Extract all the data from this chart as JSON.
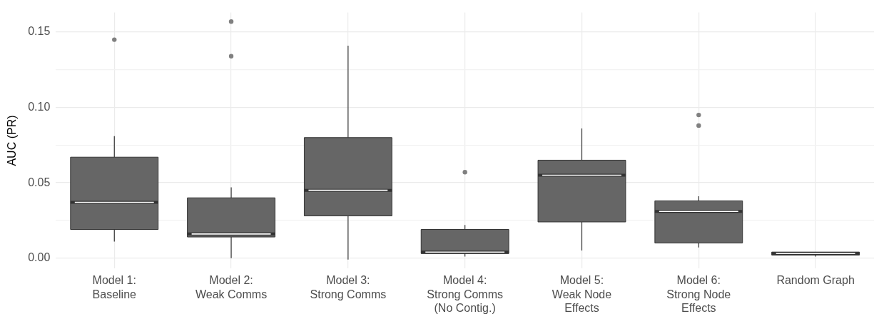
{
  "chart_data": {
    "type": "box",
    "ylabel": "AUC (PR)",
    "categories": [
      "Model 1:\nBaseline",
      "Model 2:\nWeak Comms",
      "Model 3:\nStrong Comms",
      "Model 4:\nStrong Comms\n(No Contig.)",
      "Model 5:\nWeak Node\nEffects",
      "Model 6:\nStrong Node\nEffects",
      "Random Graph"
    ],
    "color": "#666666",
    "boxes": [
      {
        "low": 0.011,
        "q1": 0.019,
        "median": 0.037,
        "q3": 0.067,
        "high": 0.081,
        "outliers": [
          0.145
        ]
      },
      {
        "low": 0.0,
        "q1": 0.014,
        "median": 0.016,
        "q3": 0.04,
        "high": 0.047,
        "outliers": [
          0.157,
          0.134
        ]
      },
      {
        "low": -0.001,
        "q1": 0.028,
        "median": 0.045,
        "q3": 0.08,
        "high": 0.141
      },
      {
        "low": 0.001,
        "q1": 0.003,
        "median": 0.004,
        "q3": 0.019,
        "high": 0.022,
        "outliers": [
          0.057
        ]
      },
      {
        "low": 0.005,
        "q1": 0.024,
        "median": 0.055,
        "q3": 0.065,
        "high": 0.086
      },
      {
        "low": 0.007,
        "q1": 0.01,
        "median": 0.031,
        "q3": 0.038,
        "high": 0.041,
        "outliers": [
          0.095,
          0.088
        ]
      },
      {
        "low": 0.001,
        "q1": 0.002,
        "median": 0.003,
        "q3": 0.004,
        "high": 0.004
      }
    ],
    "ylim": [
      -0.007,
      0.163
    ],
    "yticks": [
      {
        "value": 0,
        "label": "0.00"
      },
      {
        "value": 0.025,
        "label": null
      },
      {
        "value": 0.05,
        "label": "0.05"
      },
      {
        "value": 0.075,
        "label": null
      },
      {
        "value": 0.1,
        "label": "0.10"
      },
      {
        "value": 0.125,
        "label": null
      },
      {
        "value": 0.15,
        "label": "0.15"
      }
    ],
    "grid": true,
    "legend": false
  }
}
